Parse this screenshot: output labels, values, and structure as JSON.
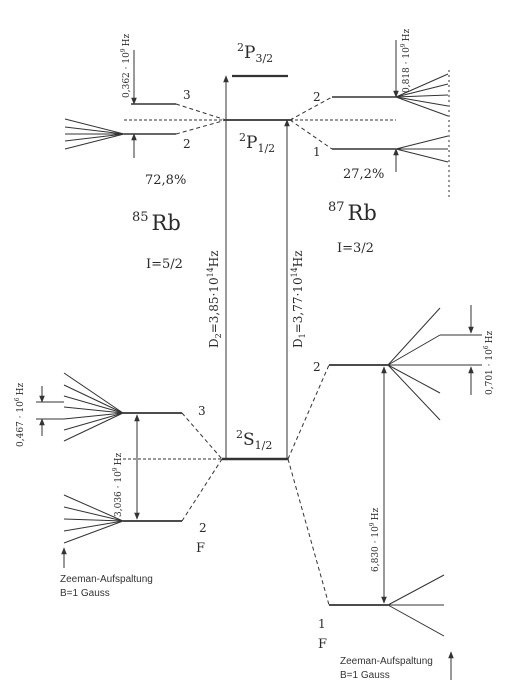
{
  "states": {
    "p32": {
      "sup": "2",
      "sym": "P",
      "sub": "3/2"
    },
    "p12": {
      "sup": "2",
      "sym": "P",
      "sub": "1/2"
    },
    "s12": {
      "sup": "2",
      "sym": "S",
      "sub": "1/2"
    }
  },
  "rb85": {
    "mass": "85",
    "sym": "Rb",
    "spin": "I=5/2",
    "abundance": "72,8%",
    "p_upper_f": "3",
    "p_lower_f": "2",
    "p_split": "0,362 · 10",
    "s_upper_f": "3",
    "s_lower_f": "2",
    "s_split": "3,036 · 10",
    "zeeman_split": "0,467 · 10",
    "f_label": "F",
    "zeeman_title": "Zeeman-Aufspaltung",
    "zeeman_field": "B=1 Gauss"
  },
  "rb87": {
    "mass": "87",
    "sym": "Rb",
    "spin": "I=3/2",
    "abundance": "27,2%",
    "p_upper_f": "2",
    "p_lower_f": "1",
    "p_split": "0,818 · 10",
    "s_upper_f": "2",
    "s_lower_f": "1",
    "s_split": "6,830 · 10",
    "zeeman_split": "0,701 · 10",
    "f_label": "F",
    "zeeman_title": "Zeeman-Aufspaltung",
    "zeeman_field": "B=1 Gauss"
  },
  "units": {
    "exp9": "9",
    "exp6": "6",
    "exp14": "14",
    "hz": "Hz"
  },
  "transitions": {
    "d2_sym": "D",
    "d2_sub": "2",
    "d2_value": "=3,85·10",
    "d1_sym": "D",
    "d1_sub": "1",
    "d1_value": "=3,77·10"
  }
}
